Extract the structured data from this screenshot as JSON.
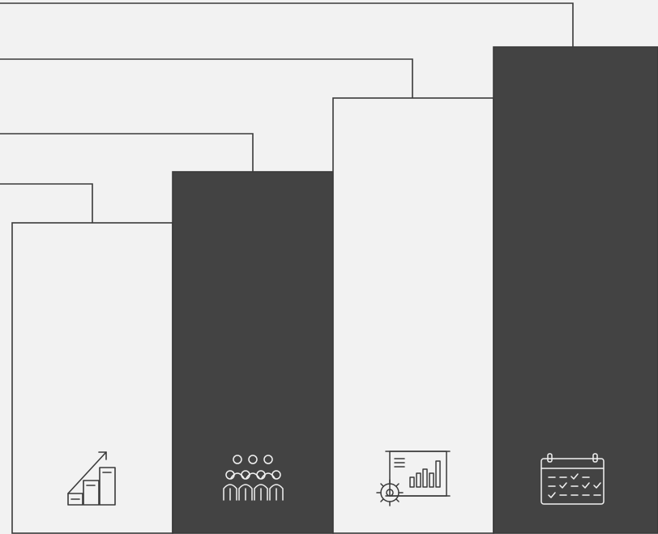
{
  "diagram": {
    "colors": {
      "background": "#f2f2f2",
      "dark": "#434343",
      "line": "#3a3a3a",
      "icon_on_light": "#3a3a3a",
      "icon_on_dark": "#f2f2f2"
    },
    "steps": [
      {
        "tone": "light",
        "icon": "growth-chart-icon"
      },
      {
        "tone": "dark",
        "icon": "team-group-icon"
      },
      {
        "tone": "light",
        "icon": "presentation-analytics-icon"
      },
      {
        "tone": "dark",
        "icon": "calendar-checklist-icon"
      }
    ]
  }
}
